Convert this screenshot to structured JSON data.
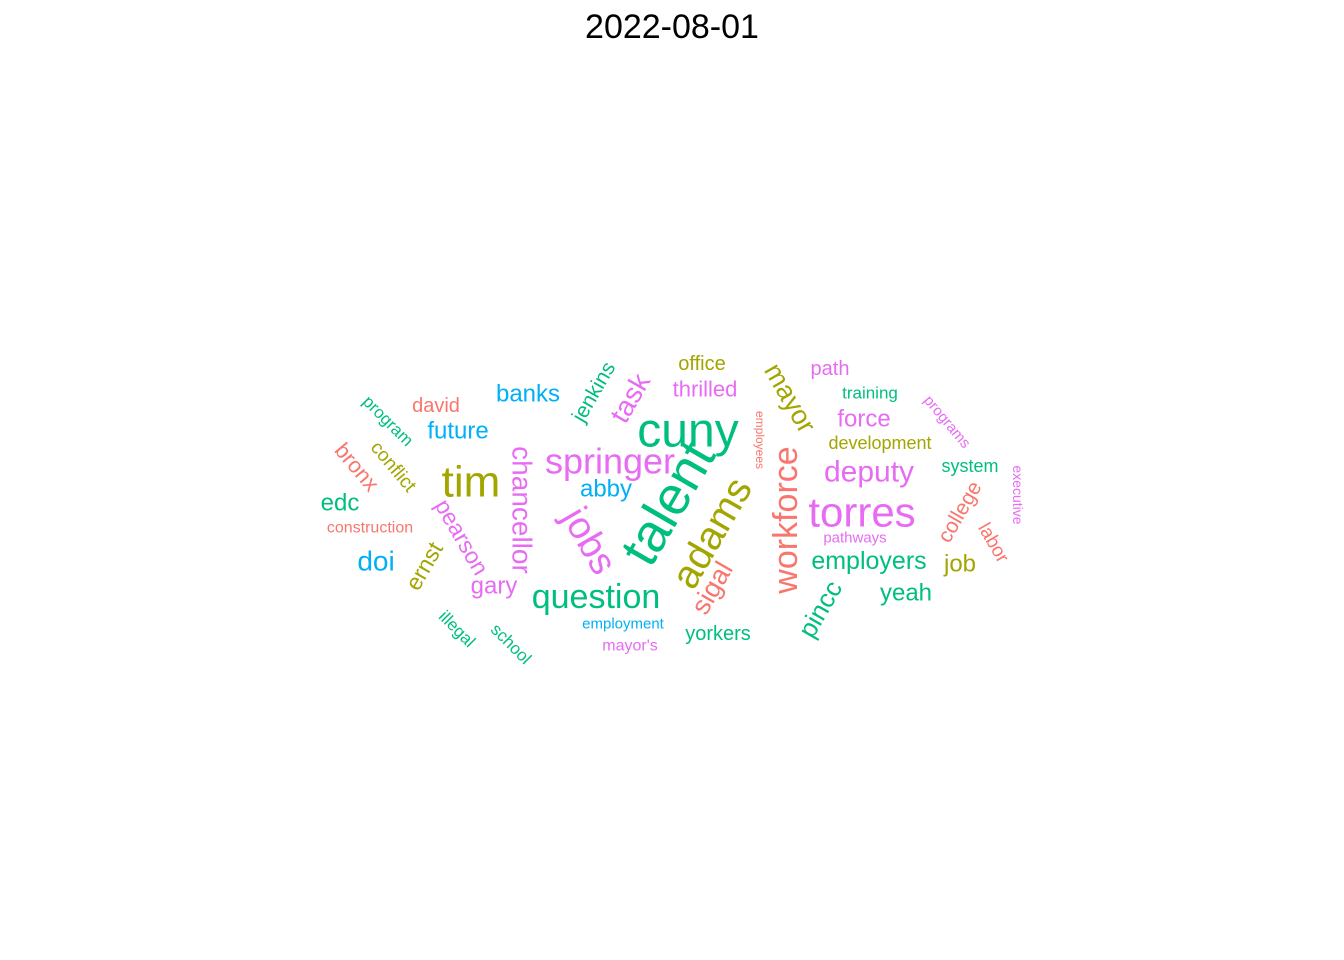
{
  "chart_data": {
    "type": "wordcloud",
    "title": "2022-08-01",
    "words": [
      {
        "text": "talent",
        "weight": 10,
        "color": "#00BF7D"
      },
      {
        "text": "cuny",
        "weight": 9.5,
        "color": "#00BF7D"
      },
      {
        "text": "tim",
        "weight": 9,
        "color": "#A3A500"
      },
      {
        "text": "torres",
        "weight": 9,
        "color": "#E76BF3"
      },
      {
        "text": "adams",
        "weight": 8.5,
        "color": "#A3A500"
      },
      {
        "text": "jobs",
        "weight": 8,
        "color": "#E76BF3"
      },
      {
        "text": "springer",
        "weight": 7.5,
        "color": "#E76BF3"
      },
      {
        "text": "workforce",
        "weight": 7.5,
        "color": "#F8766D"
      },
      {
        "text": "chancellor",
        "weight": 6.5,
        "color": "#E76BF3"
      },
      {
        "text": "question",
        "weight": 6.5,
        "color": "#00BF7D"
      },
      {
        "text": "deputy",
        "weight": 6,
        "color": "#E76BF3"
      },
      {
        "text": "task",
        "weight": 5.5,
        "color": "#E76BF3"
      },
      {
        "text": "mayor",
        "weight": 5.5,
        "color": "#A3A500"
      },
      {
        "text": "sigal",
        "weight": 5.5,
        "color": "#F8766D"
      },
      {
        "text": "doi",
        "weight": 5.5,
        "color": "#00B0F6"
      },
      {
        "text": "employers",
        "weight": 5,
        "color": "#00BF7D"
      },
      {
        "text": "pincc",
        "weight": 5,
        "color": "#00BF7D"
      },
      {
        "text": "edc",
        "weight": 4.5,
        "color": "#00BF7D"
      },
      {
        "text": "future",
        "weight": 4.5,
        "color": "#00B0F6"
      },
      {
        "text": "banks",
        "weight": 4.5,
        "color": "#00B0F6"
      },
      {
        "text": "abby",
        "weight": 4.5,
        "color": "#00B0F6"
      },
      {
        "text": "force",
        "weight": 4.5,
        "color": "#E76BF3"
      },
      {
        "text": "pearson",
        "weight": 4.5,
        "color": "#E76BF3"
      },
      {
        "text": "ernst",
        "weight": 4.5,
        "color": "#A3A500"
      },
      {
        "text": "gary",
        "weight": 4.5,
        "color": "#E76BF3"
      },
      {
        "text": "yeah",
        "weight": 4.5,
        "color": "#00BF7D"
      },
      {
        "text": "job",
        "weight": 4.5,
        "color": "#A3A500"
      },
      {
        "text": "thrilled",
        "weight": 4,
        "color": "#E76BF3"
      },
      {
        "text": "jenkins",
        "weight": 4,
        "color": "#00BF7D"
      },
      {
        "text": "bronx",
        "weight": 4,
        "color": "#F8766D"
      },
      {
        "text": "college",
        "weight": 4,
        "color": "#F8766D"
      },
      {
        "text": "yorkers",
        "weight": 3.5,
        "color": "#00BF7D"
      },
      {
        "text": "david",
        "weight": 3.5,
        "color": "#F8766D"
      },
      {
        "text": "office",
        "weight": 3.5,
        "color": "#A3A500"
      },
      {
        "text": "path",
        "weight": 3.5,
        "color": "#E76BF3"
      },
      {
        "text": "conflict",
        "weight": 3.5,
        "color": "#A3A500"
      },
      {
        "text": "labor",
        "weight": 3.5,
        "color": "#F8766D"
      },
      {
        "text": "development",
        "weight": 3,
        "color": "#A3A500"
      },
      {
        "text": "system",
        "weight": 3,
        "color": "#00BF7D"
      },
      {
        "text": "program",
        "weight": 3,
        "color": "#00BF7D"
      },
      {
        "text": "training",
        "weight": 3,
        "color": "#00BF7D"
      },
      {
        "text": "illegal",
        "weight": 3,
        "color": "#00BF7D"
      },
      {
        "text": "school",
        "weight": 3,
        "color": "#00BF7D"
      },
      {
        "text": "construction",
        "weight": 2.5,
        "color": "#F8766D"
      },
      {
        "text": "mayor's",
        "weight": 2.5,
        "color": "#E76BF3"
      },
      {
        "text": "employment",
        "weight": 2.5,
        "color": "#00B0F6"
      },
      {
        "text": "pathways",
        "weight": 2.5,
        "color": "#E76BF3"
      },
      {
        "text": "programs",
        "weight": 2.5,
        "color": "#E76BF3"
      },
      {
        "text": "executive",
        "weight": 2,
        "color": "#E76BF3"
      },
      {
        "text": "employees",
        "weight": 1.5,
        "color": "#F8766D"
      }
    ]
  }
}
